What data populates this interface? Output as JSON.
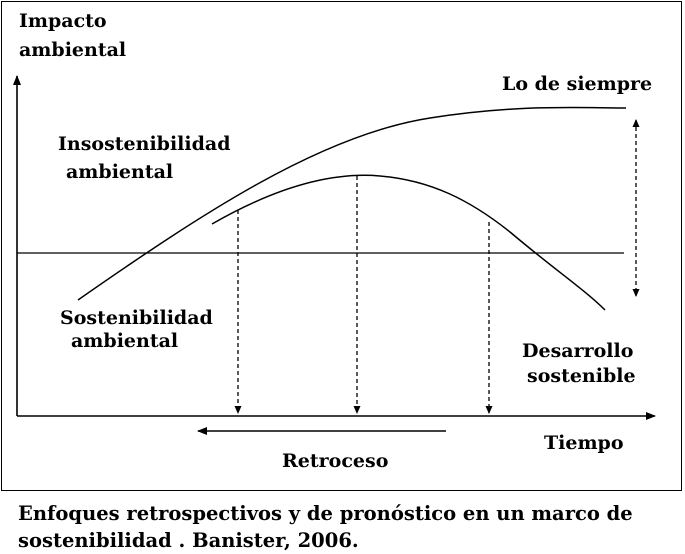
{
  "labels": {
    "y_axis_line1": "Impacto",
    "y_axis_line2": "ambiental",
    "x_axis": "Tiempo",
    "business_as_usual": "Lo de siempre",
    "unsustainability_line1": "Insostenibilidad",
    "unsustainability_line2": "ambiental",
    "sustainability_line1": "Sostenibilidad",
    "sustainability_line2": "ambiental",
    "sustainable_dev_line1": "Desarrollo",
    "sustainable_dev_line2": "sostenible",
    "backcasting": "Retroceso"
  },
  "caption": {
    "line1": "Enfoques retrospectivos y de pronóstico en un marco de",
    "line2": "sostenibilidad . Banister, 2006."
  },
  "colors": {
    "ink": "#000000",
    "background": "#ffffff"
  }
}
